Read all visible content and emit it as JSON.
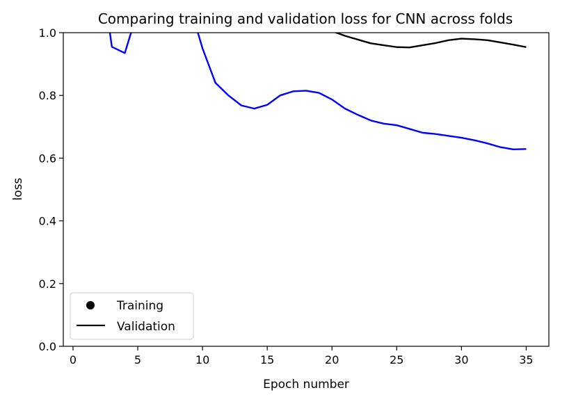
{
  "chart_data": {
    "type": "line",
    "title": "Comparing training and validation loss for CNN across folds",
    "xlabel": "Epoch number",
    "ylabel": "loss",
    "xlim": [
      -0.75,
      36.75
    ],
    "ylim": [
      0.0,
      1.0
    ],
    "xticks": [
      0,
      5,
      10,
      15,
      20,
      25,
      30,
      35
    ],
    "yticks": [
      0.0,
      0.2,
      0.4,
      0.6,
      0.8,
      1.0
    ],
    "xtick_labels": [
      "0",
      "5",
      "10",
      "15",
      "20",
      "25",
      "30",
      "35"
    ],
    "ytick_labels": [
      "0.0",
      "0.2",
      "0.4",
      "0.6",
      "0.8",
      "1.0"
    ],
    "grid": false,
    "legend": {
      "position": "lower-left",
      "entries": [
        {
          "label": "Training",
          "marker": "circle",
          "color": "#000000"
        },
        {
          "label": "Validation",
          "marker": "line",
          "color": "#000000"
        }
      ]
    },
    "series": [
      {
        "color": "#0000ff",
        "x": [
          2,
          3,
          4,
          5,
          6,
          7,
          8,
          9,
          10,
          11,
          12,
          13,
          14,
          15,
          16,
          17,
          18,
          19,
          20,
          21,
          22,
          23,
          24,
          25,
          26,
          27,
          28,
          29,
          30,
          31,
          32,
          33,
          34,
          35
        ],
        "y": [
          1.25,
          0.955,
          0.935,
          1.07,
          1.12,
          1.12,
          1.1,
          1.09,
          0.95,
          0.84,
          0.8,
          0.768,
          0.758,
          0.77,
          0.8,
          0.813,
          0.815,
          0.808,
          0.787,
          0.758,
          0.738,
          0.72,
          0.71,
          0.705,
          0.693,
          0.681,
          0.677,
          0.671,
          0.665,
          0.657,
          0.647,
          0.635,
          0.628,
          0.629
        ]
      },
      {
        "color": "#000000",
        "x": [
          18,
          19,
          20,
          21,
          22,
          23,
          24,
          25,
          26,
          27,
          28,
          29,
          30,
          31,
          32,
          33,
          34,
          35
        ],
        "y": [
          1.04,
          1.02,
          1.005,
          0.99,
          0.978,
          0.966,
          0.96,
          0.954,
          0.953,
          0.96,
          0.967,
          0.976,
          0.981,
          0.979,
          0.976,
          0.969,
          0.962,
          0.954
        ]
      }
    ]
  }
}
